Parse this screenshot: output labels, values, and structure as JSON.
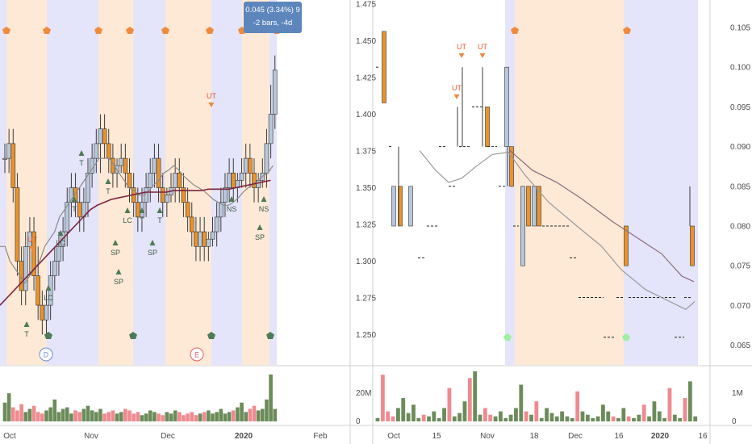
{
  "colors": {
    "band_blue": "#e4e4fa",
    "band_orange": "#fde9d6",
    "up_body": "#b7c8dc",
    "down_body": "#e8932d",
    "wick": "#3a3a3a",
    "ma_short": "#8b8b8b",
    "ma_long": "#7d2240",
    "vol_up": "#6b8c5a",
    "vol_down": "#ee8a90",
    "marker_orange": "#f08a3c",
    "marker_green": "#4e7a55",
    "marker_green_light": "#9ef0a0",
    "tooltip_bg": "#5d86bd",
    "signal_text": "#3b5a47",
    "ut_text": "#e8542d"
  },
  "chart_data": [
    {
      "type": "candlestick",
      "panel": "left",
      "y_ticks": [
        "1.475",
        "1.450",
        "1.425",
        "1.400",
        "1.375",
        "1.350",
        "1.325",
        "1.300",
        "1.275",
        "1.250"
      ],
      "ylim": [
        1.24,
        1.48
      ],
      "x_ticks": [
        "Oct",
        "Nov",
        "Dec",
        "2020",
        "Feb"
      ],
      "volume_ticks": [
        "20M",
        "0"
      ],
      "circle_labels": [
        "D",
        "E"
      ],
      "tooltip": [
        "0.045 (3.34%) 9",
        "-2 bars, -4d"
      ],
      "signals": [
        "UT",
        "T",
        "LC",
        "T",
        "T",
        "T",
        "LC",
        "T",
        "T",
        "SP",
        "SP",
        "SP",
        "UT",
        "NS",
        "NS",
        "SP"
      ],
      "bars": [
        [
          1.37,
          1.38,
          1.36,
          1.37
        ],
        [
          1.37,
          1.39,
          1.36,
          1.38
        ],
        [
          1.38,
          1.39,
          1.34,
          1.35
        ],
        [
          1.35,
          1.36,
          1.29,
          1.3
        ],
        [
          1.3,
          1.31,
          1.27,
          1.28
        ],
        [
          1.28,
          1.32,
          1.27,
          1.31
        ],
        [
          1.31,
          1.33,
          1.29,
          1.32
        ],
        [
          1.32,
          1.33,
          1.28,
          1.29
        ],
        [
          1.29,
          1.31,
          1.26,
          1.27
        ],
        [
          1.27,
          1.28,
          1.25,
          1.26
        ],
        [
          1.26,
          1.28,
          1.25,
          1.27
        ],
        [
          1.27,
          1.3,
          1.26,
          1.29
        ],
        [
          1.29,
          1.31,
          1.28,
          1.3
        ],
        [
          1.3,
          1.32,
          1.29,
          1.31
        ],
        [
          1.31,
          1.33,
          1.3,
          1.32
        ],
        [
          1.32,
          1.35,
          1.31,
          1.34
        ],
        [
          1.34,
          1.36,
          1.33,
          1.35
        ],
        [
          1.35,
          1.36,
          1.33,
          1.34
        ],
        [
          1.34,
          1.35,
          1.32,
          1.33
        ],
        [
          1.33,
          1.35,
          1.32,
          1.34
        ],
        [
          1.34,
          1.37,
          1.33,
          1.36
        ],
        [
          1.36,
          1.38,
          1.35,
          1.37
        ],
        [
          1.37,
          1.39,
          1.36,
          1.38
        ],
        [
          1.38,
          1.4,
          1.36,
          1.39
        ],
        [
          1.39,
          1.4,
          1.37,
          1.38
        ],
        [
          1.38,
          1.39,
          1.36,
          1.37
        ],
        [
          1.37,
          1.38,
          1.35,
          1.36
        ],
        [
          1.36,
          1.37,
          1.35,
          1.365
        ],
        [
          1.365,
          1.38,
          1.36,
          1.37
        ],
        [
          1.37,
          1.38,
          1.35,
          1.36
        ],
        [
          1.36,
          1.37,
          1.34,
          1.35
        ],
        [
          1.35,
          1.36,
          1.33,
          1.34
        ],
        [
          1.34,
          1.35,
          1.32,
          1.33
        ],
        [
          1.33,
          1.35,
          1.32,
          1.34
        ],
        [
          1.34,
          1.36,
          1.33,
          1.35
        ],
        [
          1.35,
          1.37,
          1.34,
          1.36
        ],
        [
          1.36,
          1.38,
          1.35,
          1.37
        ],
        [
          1.37,
          1.38,
          1.34,
          1.35
        ],
        [
          1.35,
          1.36,
          1.33,
          1.34
        ],
        [
          1.34,
          1.35,
          1.33,
          1.345
        ],
        [
          1.345,
          1.36,
          1.34,
          1.35
        ],
        [
          1.35,
          1.37,
          1.34,
          1.36
        ],
        [
          1.36,
          1.37,
          1.34,
          1.35
        ],
        [
          1.35,
          1.36,
          1.33,
          1.34
        ],
        [
          1.34,
          1.35,
          1.32,
          1.33
        ],
        [
          1.33,
          1.34,
          1.31,
          1.32
        ],
        [
          1.32,
          1.33,
          1.3,
          1.31
        ],
        [
          1.31,
          1.33,
          1.3,
          1.32
        ],
        [
          1.32,
          1.33,
          1.3,
          1.31
        ],
        [
          1.31,
          1.32,
          1.3,
          1.315
        ],
        [
          1.315,
          1.33,
          1.31,
          1.32
        ],
        [
          1.32,
          1.34,
          1.31,
          1.33
        ],
        [
          1.33,
          1.35,
          1.32,
          1.34
        ],
        [
          1.34,
          1.36,
          1.33,
          1.35
        ],
        [
          1.35,
          1.37,
          1.34,
          1.36
        ],
        [
          1.36,
          1.37,
          1.34,
          1.35
        ],
        [
          1.35,
          1.36,
          1.34,
          1.355
        ],
        [
          1.355,
          1.37,
          1.35,
          1.36
        ],
        [
          1.36,
          1.38,
          1.35,
          1.37
        ],
        [
          1.37,
          1.38,
          1.35,
          1.36
        ],
        [
          1.36,
          1.37,
          1.34,
          1.35
        ],
        [
          1.35,
          1.36,
          1.34,
          1.355
        ],
        [
          1.355,
          1.37,
          1.35,
          1.36
        ],
        [
          1.36,
          1.39,
          1.35,
          1.38
        ],
        [
          1.38,
          1.42,
          1.37,
          1.4
        ],
        [
          1.4,
          1.44,
          1.39,
          1.43
        ]
      ],
      "volume": [
        12,
        18,
        9,
        7,
        11,
        6,
        8,
        10,
        6,
        5,
        7,
        9,
        14,
        6,
        8,
        9,
        5,
        7,
        6,
        8,
        10,
        7,
        6,
        8,
        5,
        6,
        7,
        5,
        6,
        8,
        7,
        5,
        6,
        4,
        5,
        7,
        6,
        5,
        4,
        6,
        5,
        7,
        6,
        4,
        5,
        6,
        4,
        5,
        6,
        7,
        5,
        6,
        8,
        5,
        6,
        7,
        9,
        12,
        6,
        8,
        10,
        7,
        8,
        14,
        30,
        8
      ],
      "ma_short": [
        1.31,
        1.31,
        1.3,
        1.295,
        1.29,
        1.285,
        1.29,
        1.295,
        1.3,
        1.31,
        1.315,
        1.32,
        1.33,
        1.335,
        1.34,
        1.345,
        1.35,
        1.355,
        1.36,
        1.365,
        1.37,
        1.37,
        1.37,
        1.365,
        1.36,
        1.355,
        1.35,
        1.348,
        1.345,
        1.345,
        1.348,
        1.352,
        1.355,
        1.36,
        1.362,
        1.365,
        1.362,
        1.358,
        1.355,
        1.352,
        1.35,
        1.348,
        1.345,
        1.342,
        1.34,
        1.338,
        1.338,
        1.34,
        1.343,
        1.347,
        1.35,
        1.352,
        1.355,
        1.358,
        1.36,
        1.365
      ],
      "ma_long": [
        1.27,
        1.275,
        1.28,
        1.285,
        1.29,
        1.295,
        1.3,
        1.305,
        1.31,
        1.315,
        1.32,
        1.325,
        1.33,
        1.335,
        1.338,
        1.34,
        1.342,
        1.343,
        1.344,
        1.345,
        1.346,
        1.347,
        1.347,
        1.347,
        1.347,
        1.348,
        1.348,
        1.348,
        1.348,
        1.348,
        1.349,
        1.349,
        1.349,
        1.349,
        1.35,
        1.351,
        1.352,
        1.353,
        1.354,
        1.355
      ]
    },
    {
      "type": "renko",
      "panel": "right",
      "y_ticks": [
        "0.105",
        "0.100",
        "0.095",
        "0.090",
        "0.085",
        "0.080",
        "0.075",
        "0.070",
        "0.065"
      ],
      "ylim": [
        0.063,
        0.108
      ],
      "x_ticks": [
        "Oct",
        "15",
        "Nov",
        "18",
        "Dec",
        "16",
        "2020",
        "16"
      ],
      "volume_ticks": [
        "1M",
        "0"
      ],
      "signals": [
        "UT",
        "UT",
        "UT"
      ],
      "volume": [
        2,
        28,
        6,
        3,
        8,
        14,
        5,
        10,
        2,
        4,
        3,
        6,
        2,
        8,
        20,
        3,
        5,
        12,
        26,
        30,
        4,
        8,
        4,
        3,
        6,
        2,
        4,
        8,
        22,
        6,
        4,
        12,
        2,
        8,
        5,
        3,
        6,
        3,
        2,
        18,
        6,
        4,
        2,
        3,
        10,
        6,
        3,
        2,
        8,
        3,
        2,
        4,
        10,
        3,
        12,
        6,
        2,
        20,
        4,
        2,
        14,
        24,
        3
      ]
    }
  ]
}
